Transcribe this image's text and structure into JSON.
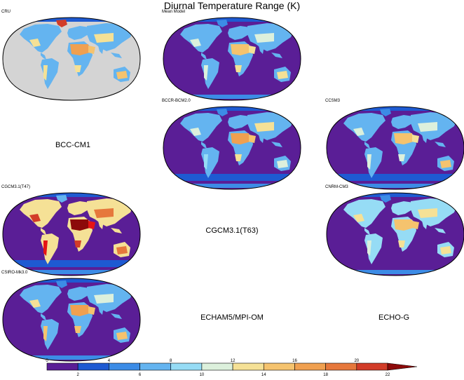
{
  "title": "Diurnal Temperature Range (K)",
  "colors": {
    "ocean": "#5a1e96",
    "land_missing": "#d4d4d4",
    "scale": [
      "#5a1e96",
      "#1e5ad2",
      "#3c8ce6",
      "#64b4f0",
      "#96dcf5",
      "#dcf0dc",
      "#f5e196",
      "#f5c36e",
      "#f0a050",
      "#e6783c",
      "#d23c28",
      "#e61414",
      "#8c0a0a"
    ]
  },
  "panels": [
    {
      "id": "cru",
      "label": "CRU",
      "style": "obs"
    },
    {
      "id": "mean",
      "label": "Mean Model",
      "style": "mean"
    },
    {
      "id": "bccr",
      "label": "BCCR-BCM2.0",
      "style": "bccr"
    },
    {
      "id": "ccsm3",
      "label": "CCSM3",
      "style": "ccsm"
    },
    {
      "id": "cgcm47",
      "label": "CGCM3.1(T47)",
      "style": "hot"
    },
    {
      "id": "cnrm",
      "label": "CNRM-CM3",
      "style": "cnrm"
    },
    {
      "id": "csiro",
      "label": "CSIRO-Mk3.0",
      "style": "csiro"
    }
  ],
  "missing_models": [
    "BCC-CM1",
    "CGCM3.1(T63)",
    "ECHAM5/MPI-OM",
    "ECHO-G"
  ],
  "colorbar": {
    "top_ticks": [
      "0",
      "4",
      "8",
      "12",
      "16",
      "20"
    ],
    "bottom_ticks": [
      "2",
      "6",
      "10",
      "14",
      "18",
      "22"
    ]
  }
}
